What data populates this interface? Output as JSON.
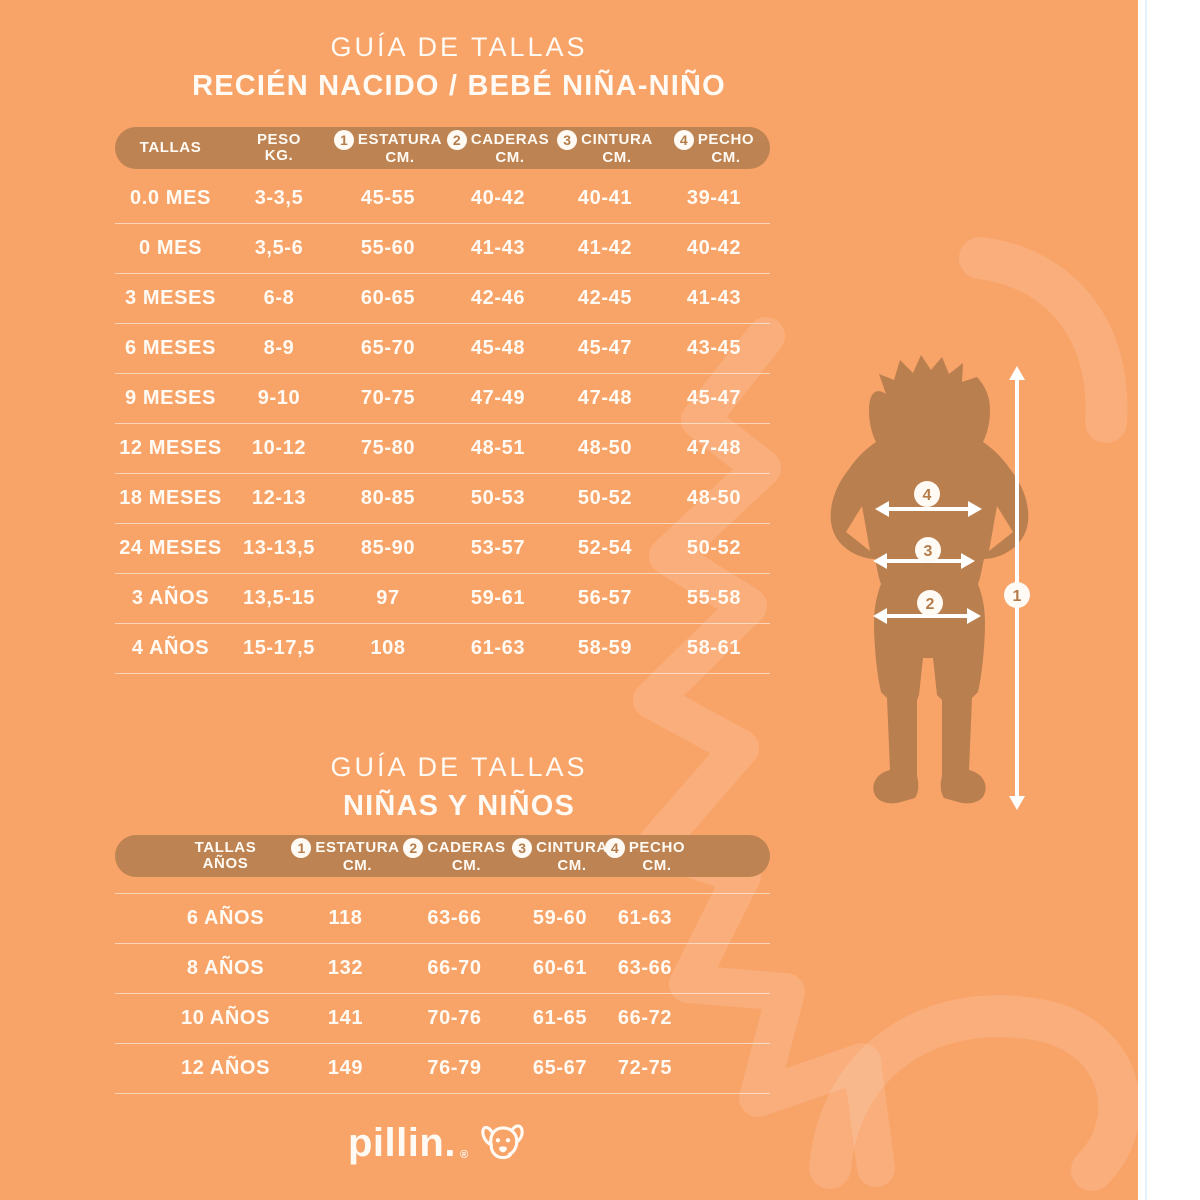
{
  "page": {
    "background_color": "#F8A368",
    "panel_color": "#BE8352",
    "silhouette_color": "#B97F4F",
    "text_color": "#FFFBF4"
  },
  "section1": {
    "title": "GUÍA DE TALLAS",
    "subtitle": "RECIÉN NACIDO / BEBÉ NIÑA-NIÑO"
  },
  "section2": {
    "title": "GUÍA DE TALLAS",
    "subtitle": "NIÑAS Y NIÑOS"
  },
  "table1": {
    "header": [
      {
        "label": "TALLAS",
        "unit": ""
      },
      {
        "label": "PESO",
        "unit": "KG."
      },
      {
        "badge": "1",
        "label": "ESTATURA",
        "unit": "CM."
      },
      {
        "badge": "2",
        "label": "CADERAS",
        "unit": "CM."
      },
      {
        "badge": "3",
        "label": "CINTURA",
        "unit": "CM."
      },
      {
        "badge": "4",
        "label": "PECHO",
        "unit": "CM."
      }
    ],
    "rows": [
      [
        "0.0 MES",
        "3-3,5",
        "45-55",
        "40-42",
        "40-41",
        "39-41"
      ],
      [
        "0 MES",
        "3,5-6",
        "55-60",
        "41-43",
        "41-42",
        "40-42"
      ],
      [
        "3 MESES",
        "6-8",
        "60-65",
        "42-46",
        "42-45",
        "41-43"
      ],
      [
        "6 MESES",
        "8-9",
        "65-70",
        "45-48",
        "45-47",
        "43-45"
      ],
      [
        "9 MESES",
        "9-10",
        "70-75",
        "47-49",
        "47-48",
        "45-47"
      ],
      [
        "12 MESES",
        "10-12",
        "75-80",
        "48-51",
        "48-50",
        "47-48"
      ],
      [
        "18 MESES",
        "12-13",
        "80-85",
        "50-53",
        "50-52",
        "48-50"
      ],
      [
        "24 MESES",
        "13-13,5",
        "85-90",
        "53-57",
        "52-54",
        "50-52"
      ],
      [
        "3 AÑOS",
        "13,5-15",
        "97",
        "59-61",
        "56-57",
        "55-58"
      ],
      [
        "4 AÑOS",
        "15-17,5",
        "108",
        "61-63",
        "58-59",
        "58-61"
      ]
    ]
  },
  "table2": {
    "header": [
      {
        "label": "TALLAS",
        "unit": "AÑOS"
      },
      {
        "badge": "1",
        "label": "ESTATURA",
        "unit": "CM."
      },
      {
        "badge": "2",
        "label": "CADERAS",
        "unit": "CM."
      },
      {
        "badge": "3",
        "label": "CINTURA",
        "unit": "CM."
      },
      {
        "badge": "4",
        "label": "PECHO",
        "unit": "CM."
      }
    ],
    "rows": [
      [
        "6 AÑOS",
        "118",
        "63-66",
        "59-60",
        "61-63"
      ],
      [
        "8 AÑOS",
        "132",
        "66-70",
        "60-61",
        "63-66"
      ],
      [
        "10 AÑOS",
        "141",
        "70-76",
        "61-65",
        "66-72"
      ],
      [
        "12 AÑOS",
        "149",
        "76-79",
        "65-67",
        "72-75"
      ]
    ]
  },
  "figure": {
    "badges": {
      "height": "1",
      "hips": "2",
      "waist": "3",
      "chest": "4"
    }
  },
  "logo": {
    "brand": "pillin.",
    "registered": "®"
  }
}
